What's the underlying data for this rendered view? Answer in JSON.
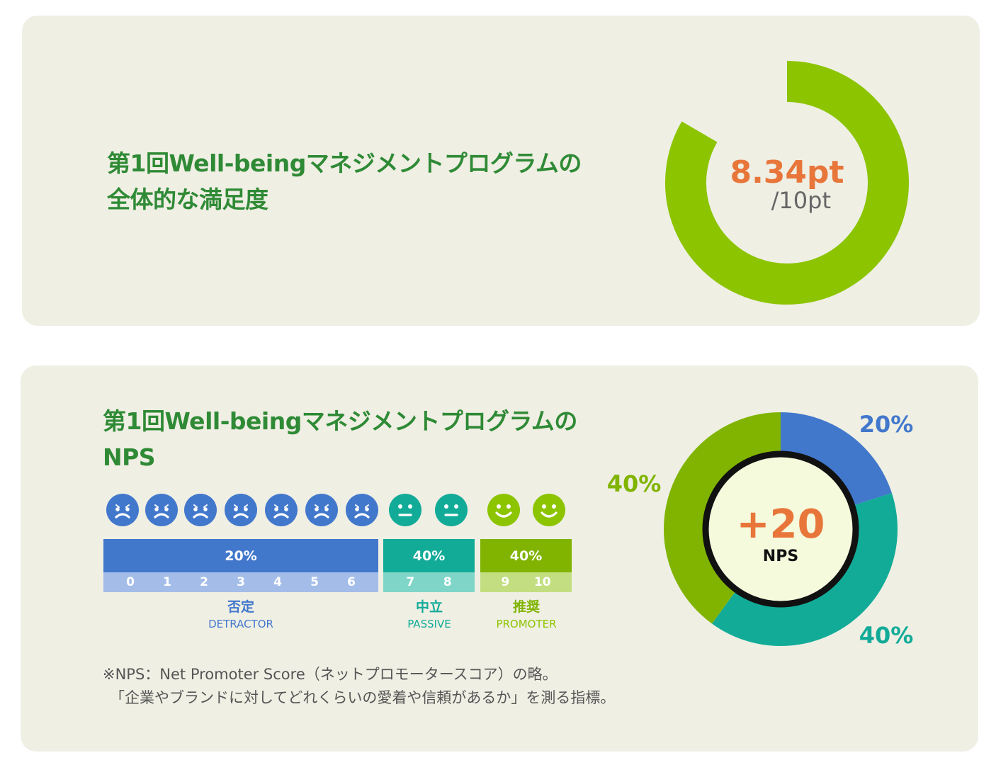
{
  "colors": {
    "card_bg": "#efefe4",
    "title": "#2f8a35",
    "accent_orange": "#e8763a",
    "ring_green": "#8cc400",
    "detractor_blue": "#4278cc",
    "passive_teal": "#12ab98",
    "promoter_green": "#80b400"
  },
  "satisfaction": {
    "title_line1": "第1回Well-beingマネジメントプログラムの",
    "title_line2": "全体的な満足度",
    "score": "8.34pt",
    "max": "/10pt",
    "chart_data": {
      "type": "donut",
      "value": 8.34,
      "max": 10,
      "title": "第1回Well-beingマネジメントプログラムの全体的な満足度",
      "labels": [
        "8.34pt",
        "/10pt"
      ]
    }
  },
  "nps": {
    "title_line1": "第1回Well-beingマネジメントプログラムの",
    "title_line2": "NPS",
    "score": "+20",
    "score_label": "NPS",
    "faces": [
      {
        "type": "sad",
        "icon": "sad-face-icon"
      },
      {
        "type": "sad",
        "icon": "sad-face-icon"
      },
      {
        "type": "sad",
        "icon": "sad-face-icon"
      },
      {
        "type": "sad",
        "icon": "sad-face-icon"
      },
      {
        "type": "sad",
        "icon": "sad-face-icon"
      },
      {
        "type": "sad",
        "icon": "sad-face-icon"
      },
      {
        "type": "sad",
        "icon": "sad-face-icon"
      },
      {
        "type": "neutral",
        "icon": "neutral-face-icon"
      },
      {
        "type": "neutral",
        "icon": "neutral-face-icon"
      },
      {
        "type": "happy",
        "icon": "happy-face-icon"
      },
      {
        "type": "happy",
        "icon": "happy-face-icon"
      }
    ],
    "segments": [
      {
        "key": "detractor",
        "percent": "20%",
        "scores": [
          "0",
          "1",
          "2",
          "3",
          "4",
          "5",
          "6"
        ],
        "label_jp": "否定",
        "label_en": "DETRACTOR"
      },
      {
        "key": "passive",
        "percent": "40%",
        "scores": [
          "7",
          "8"
        ],
        "label_jp": "中立",
        "label_en": "PASSIVE"
      },
      {
        "key": "promoter",
        "percent": "40%",
        "scores": [
          "9",
          "10"
        ],
        "label_jp": "推奨",
        "label_en": "PROMOTER"
      }
    ],
    "note_line1": "※NPS：Net Promoter Score（ネットプロモータースコア）の略。",
    "note_line2": "「企業やブランドに対してどれくらいの愛着や信頼があるか」を測る指標。",
    "chart_data": {
      "type": "pie",
      "title": "第1回Well-beingマネジメントプログラムのNPS",
      "categories": [
        "否定 DETRACTOR",
        "中立 PASSIVE",
        "推奨 PROMOTER"
      ],
      "values": [
        20,
        40,
        40
      ],
      "value_labels": [
        "20%",
        "40%",
        "40%"
      ],
      "center_value": "+20",
      "center_label": "NPS"
    }
  }
}
